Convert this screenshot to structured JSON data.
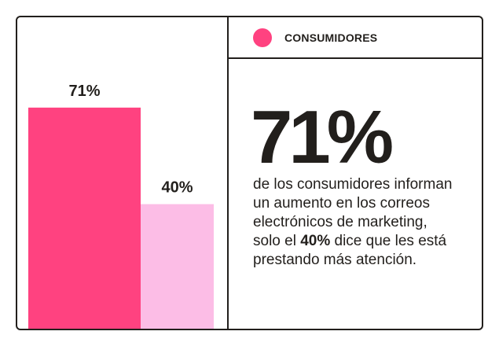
{
  "legend": {
    "label": "CONSUMIDORES",
    "color": "#ff4280"
  },
  "headline": "71%",
  "description": {
    "lines_before": "de los consumidores informan un aumento en los correos electrónicos de marketing, solo el",
    "highlight": "40%",
    "lines_after": "dice que les está prestando más atención."
  },
  "chart_data": {
    "type": "bar",
    "categories": [
      "",
      ""
    ],
    "values": [
      71,
      40
    ],
    "data_labels": [
      "71%",
      "40%"
    ],
    "colors": [
      "#ff4280",
      "#fcbde6"
    ],
    "ylim": [
      0,
      100
    ],
    "grid": false,
    "legend_placement": "top-right"
  }
}
